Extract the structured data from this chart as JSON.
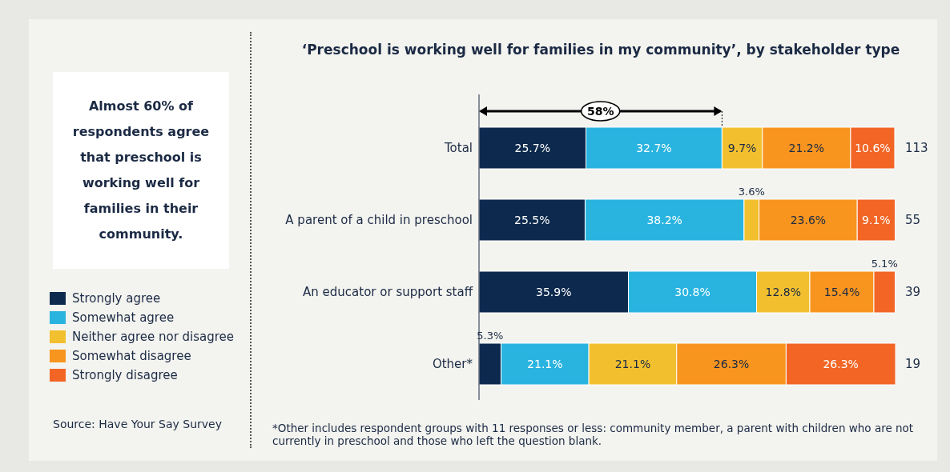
{
  "chart_data": {
    "type": "bar",
    "orientation": "horizontal",
    "stacked": true,
    "legend": "left",
    "grid": false,
    "title": "‘Preschool is working well for families in my community’, by stakeholder type",
    "categories": [
      "Total",
      "A parent of a child in preschool",
      "An educator or support staff",
      "Other*"
    ],
    "series": [
      {
        "name": "Strongly agree",
        "color": "#0d2a4e",
        "values": [
          25.7,
          25.5,
          35.9,
          5.3
        ],
        "value_labels": [
          "25.7%",
          "25.5%",
          "35.9%",
          "5.3%"
        ]
      },
      {
        "name": "Somewhat agree",
        "color": "#29b4e0",
        "values": [
          32.7,
          38.2,
          30.8,
          21.1
        ],
        "value_labels": [
          "32.7%",
          "38.2%",
          "30.8%",
          "21.1%"
        ]
      },
      {
        "name": "Neither agree nor disagree",
        "color": "#f2c02f",
        "values": [
          9.7,
          3.6,
          12.8,
          21.1
        ],
        "value_labels": [
          "9.7%",
          "3.6%",
          "12.8%",
          "21.1%"
        ]
      },
      {
        "name": "Somewhat disagree",
        "color": "#f7951f",
        "values": [
          21.2,
          23.6,
          15.4,
          26.3
        ],
        "value_labels": [
          "21.2%",
          "23.6%",
          "15.4%",
          "26.3%"
        ]
      },
      {
        "name": "Strongly disagree",
        "color": "#f26524",
        "values": [
          10.6,
          9.1,
          5.1,
          26.3
        ],
        "value_labels": [
          "10.6%",
          "9.1%",
          "5.1%",
          "26.3%"
        ]
      }
    ],
    "annotations": [
      "Almost 60% of respondents agree that preschool is working well for families in their community.",
      "Source: Have Your Say Survey",
      "*Other includes respondent groups with 11 responses or less: community member, a parent with children who are not currently in preschool and those who left the question blank.",
      "58%",
      "113",
      "55",
      "39",
      "19"
    ]
  }
}
